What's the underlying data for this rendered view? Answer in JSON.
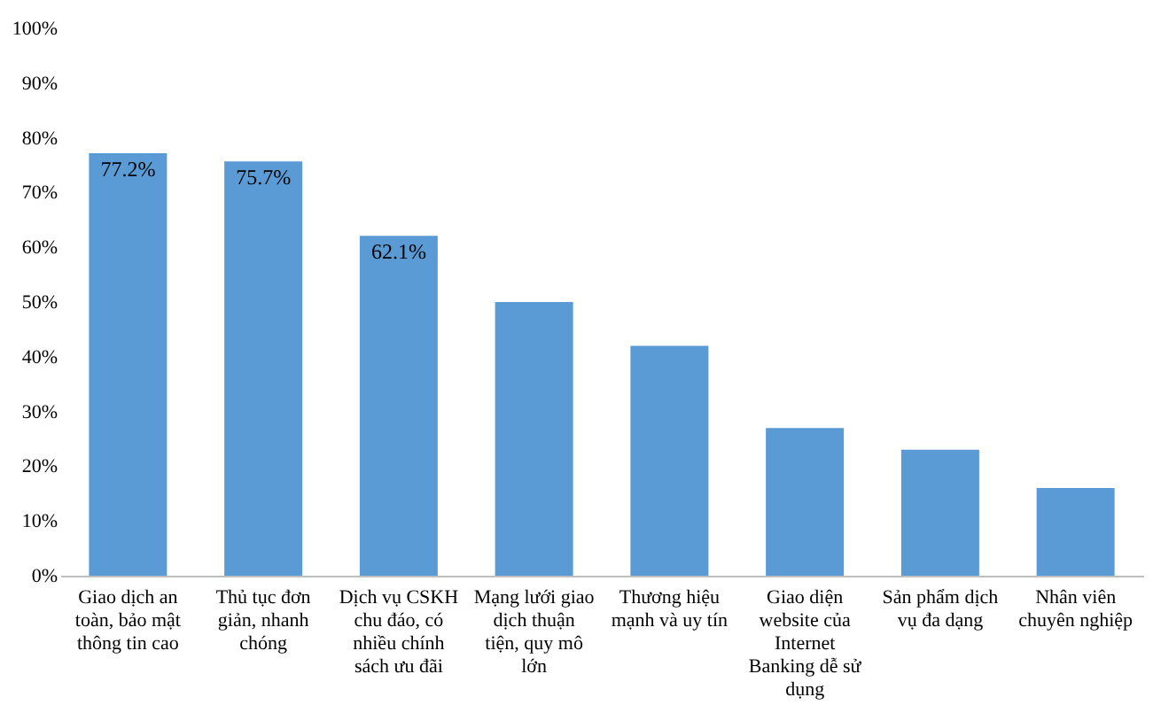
{
  "chart_data": {
    "type": "bar",
    "categories": [
      "Giao dịch an toàn, bảo mật thông tin cao",
      "Thủ tục đơn giản, nhanh chóng",
      "Dịch vụ CSKH chu đáo, có nhiều chính sách ưu đãi",
      "Mạng lưới giao dịch thuận tiện, quy mô lớn",
      "Thương hiệu mạnh và uy tín",
      "Giao diện website của Internet Banking dễ sử dụng",
      "Sản phẩm dịch vụ đa dạng",
      "Nhân viên chuyên nghiệp"
    ],
    "values": [
      77.2,
      75.7,
      62.1,
      50,
      42,
      27,
      23,
      16
    ],
    "value_labels": [
      "77.2%",
      "75.7%",
      "62.1%",
      null,
      null,
      null,
      null,
      null
    ],
    "color": "#5b9bd5",
    "ylim": [
      0,
      100
    ],
    "yticks": [
      {
        "value": 0,
        "label": "0%"
      },
      {
        "value": 10,
        "label": "10%"
      },
      {
        "value": 20,
        "label": "20%"
      },
      {
        "value": 30,
        "label": "30%"
      },
      {
        "value": 40,
        "label": "40%"
      },
      {
        "value": 50,
        "label": "50%"
      },
      {
        "value": 60,
        "label": "60%"
      },
      {
        "value": 70,
        "label": "70%"
      },
      {
        "value": 80,
        "label": "80%"
      },
      {
        "value": 90,
        "label": "90%"
      },
      {
        "value": 100,
        "label": "100%"
      }
    ],
    "grid": false
  }
}
